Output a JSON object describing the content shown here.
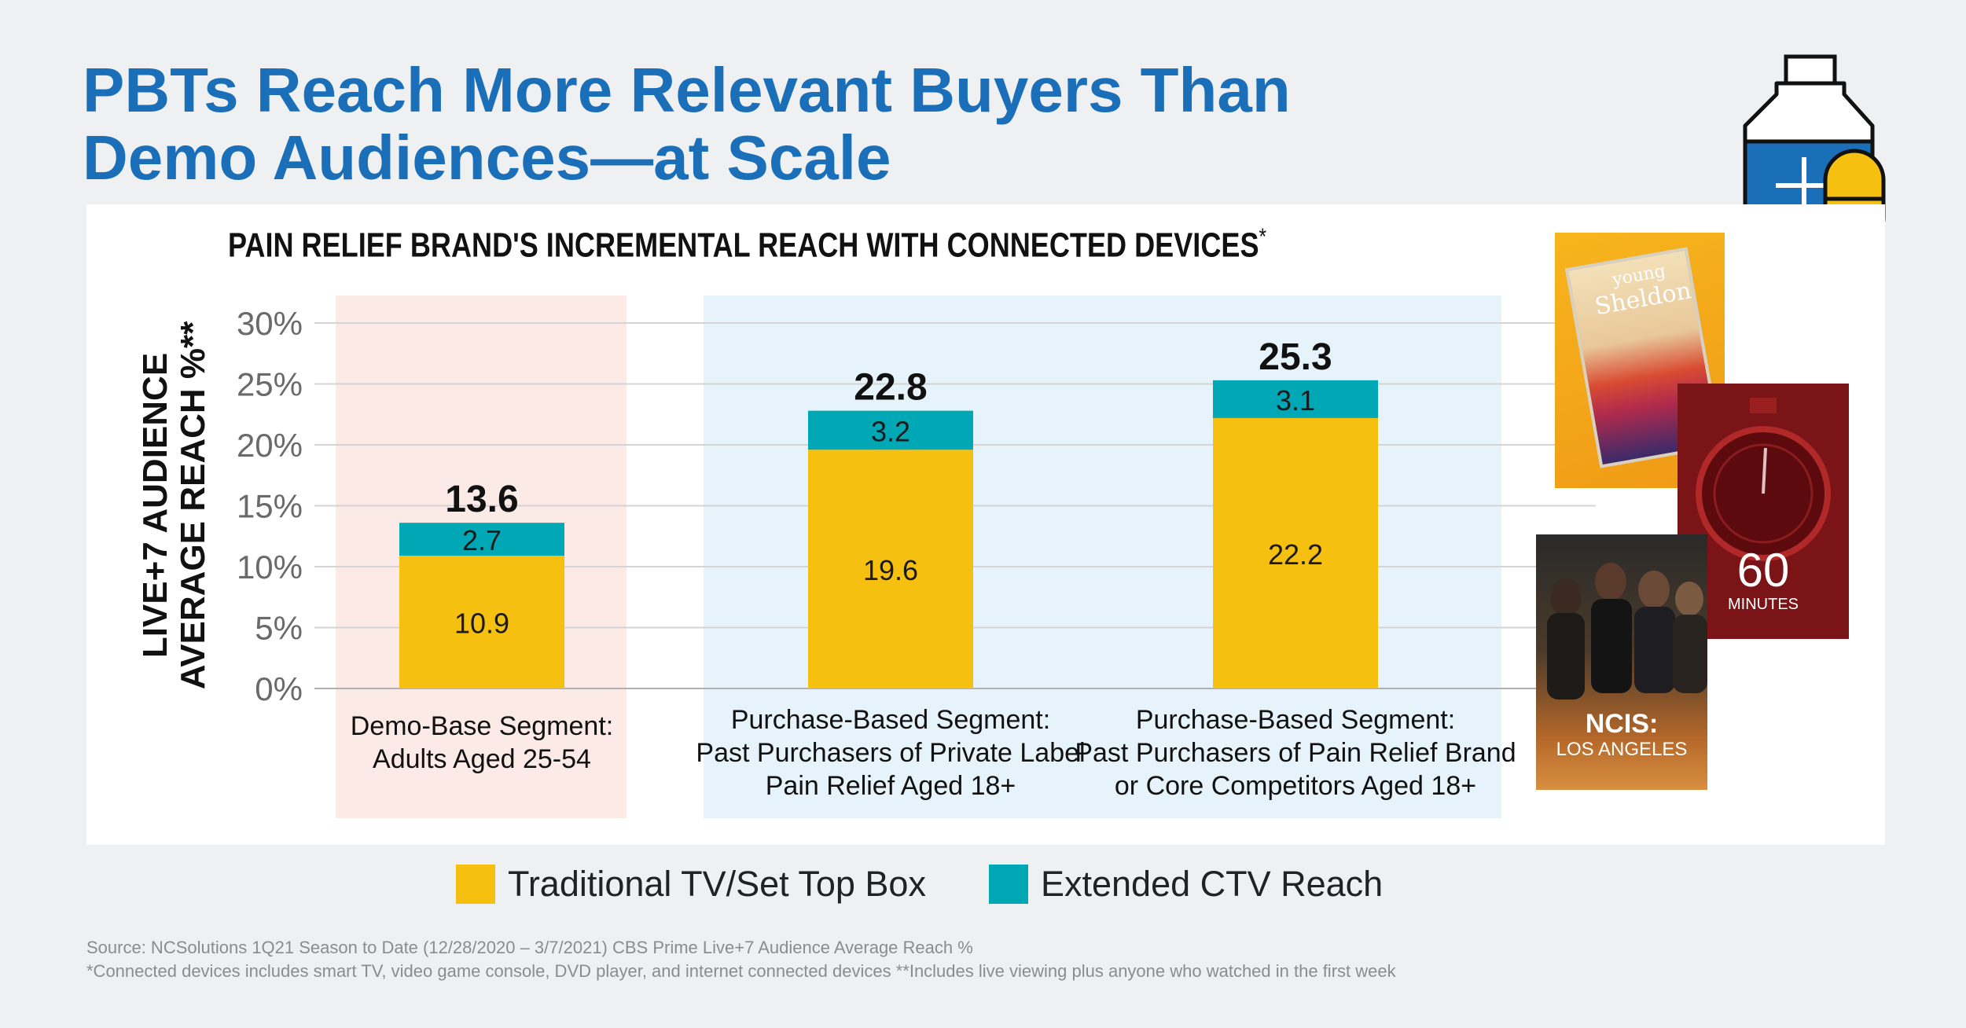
{
  "headline": {
    "line1": "PBTs Reach More Relevant Buyers Than",
    "line2": "Demo Audiences—at Scale"
  },
  "chart_data": {
    "type": "bar",
    "stacked": true,
    "title": "PAIN RELIEF BRAND'S INCREMENTAL REACH WITH CONNECTED DEVICES",
    "title_marker": "*",
    "ylabel_line1": "LIVE+7 AUDIENCE",
    "ylabel_line2": "AVERAGE REACH %**",
    "ylim": [
      0,
      30
    ],
    "yticks": [
      "0%",
      "5%",
      "10%",
      "15%",
      "20%",
      "25%",
      "30%"
    ],
    "grid": true,
    "categories": [
      [
        "Demo-Base Segment:",
        "Adults Aged 25-54"
      ],
      [
        "Purchase-Based Segment:",
        "Past Purchasers of Private Label",
        "Pain Relief Aged 18+"
      ],
      [
        "Purchase-Based Segment:",
        "Past Purchasers of Pain Relief Brand",
        "or Core Competitors Aged 18+"
      ]
    ],
    "series": [
      {
        "name": "Traditional TV/Set Top Box",
        "values": [
          10.9,
          19.6,
          22.2
        ],
        "labels": [
          "10.9",
          "19.6",
          "22.2"
        ],
        "color": "#f5c010"
      },
      {
        "name": "Extended CTV Reach",
        "values": [
          2.7,
          3.2,
          3.1
        ],
        "labels": [
          "2.7",
          "3.2",
          "3.1"
        ],
        "color": "#00a7b5"
      }
    ],
    "totals": [
      "13.6",
      "22.8",
      "25.3"
    ],
    "legend_position": "bottom",
    "highlight_colors": {
      "demo": "#fbeae6",
      "purchase": "#e6f3fa"
    }
  },
  "footnotes": {
    "source": "Source:  NCSolutions 1Q21 Season to Date (12/28/2020 – 3/7/2021) CBS Prime Live+7 Audience Average Reach %",
    "notes": "*Connected devices includes smart TV, video game console, DVD player, and internet connected devices  **Includes live viewing plus anyone who watched in the first week"
  },
  "posters": {
    "young_sheldon_line1": "young",
    "young_sheldon_line2": "Sheldon",
    "sixty_minutes_number": "60",
    "sixty_minutes_word": "MINUTES",
    "ncis_line1": "NCIS:",
    "ncis_line2": "LOS ANGELES"
  },
  "colors": {
    "headline": "#1a6fb8",
    "background": "#eef0f2",
    "tv": "#f5c010",
    "ctv": "#00a7b5",
    "icon_blue": "#1a6fb8",
    "icon_yellow": "#f5c010"
  },
  "icons": [
    "medicine-bottle-icon",
    "pill-capsule-icon"
  ]
}
